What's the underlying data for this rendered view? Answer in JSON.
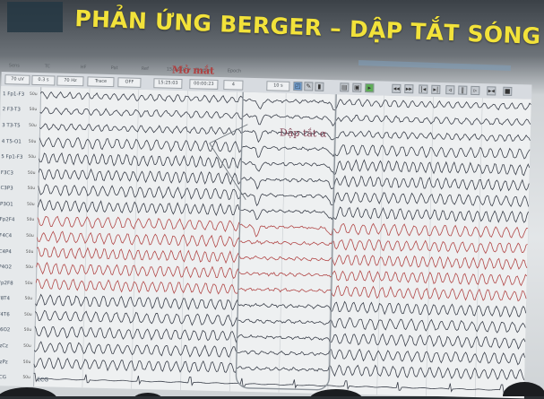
{
  "slide": {
    "title": "PHẢN ỨNG BERGER – DẬP TẮT SÓNG ALPHA"
  },
  "header_row": {
    "labels": [
      "Sens",
      "TC",
      "HF",
      "Pat",
      "Ref",
      "15/1/2019",
      "Elapsed",
      "Epoch"
    ]
  },
  "toolbar": {
    "sens_value": "70 uV",
    "tc_value": "0.3 s",
    "hf_value": "70 Hz",
    "pat_value": "Trace",
    "ref_value": "OFF",
    "time_value": "15:25:03",
    "elapsed_value": "00:00:23",
    "epoch_value": "4",
    "speed_value": "10 s"
  },
  "channels": [
    {
      "name": "1 Fp1-F3",
      "unit": "50u"
    },
    {
      "name": "2 F3-T3",
      "unit": "50u"
    },
    {
      "name": "3 T3-T5",
      "unit": "50u"
    },
    {
      "name": "4 T5-O1",
      "unit": "50u"
    },
    {
      "name": "5 Fp1-F3",
      "unit": "50u"
    },
    {
      "name": "F3C3",
      "unit": "50u"
    },
    {
      "name": "C3P3",
      "unit": "50u"
    },
    {
      "name": "P3O1",
      "unit": "50u"
    },
    {
      "name": "Fp2F4",
      "unit": "50u"
    },
    {
      "name": "F4C4",
      "unit": "50u"
    },
    {
      "name": "C4P4",
      "unit": "50u"
    },
    {
      "name": "P4O2",
      "unit": "50u"
    },
    {
      "name": "Fp2F8",
      "unit": "50u"
    },
    {
      "name": "F8T4",
      "unit": "50u"
    },
    {
      "name": "T4T6",
      "unit": "50u"
    },
    {
      "name": "T6O2",
      "unit": "50u"
    },
    {
      "name": "FzCz",
      "unit": "50u"
    },
    {
      "name": "CzPz",
      "unit": "50u"
    },
    {
      "name": "ECG",
      "unit": "50u"
    }
  ],
  "annotations": {
    "eyes_open": "Mở mắt",
    "alpha_blocked": "Dập tắt α",
    "ecg_label": "ECG"
  },
  "colors": {
    "title": "#f2e23a",
    "trace_dark": "#3a3f4a",
    "trace_red": "#b24848",
    "annotation": "#b04040"
  }
}
